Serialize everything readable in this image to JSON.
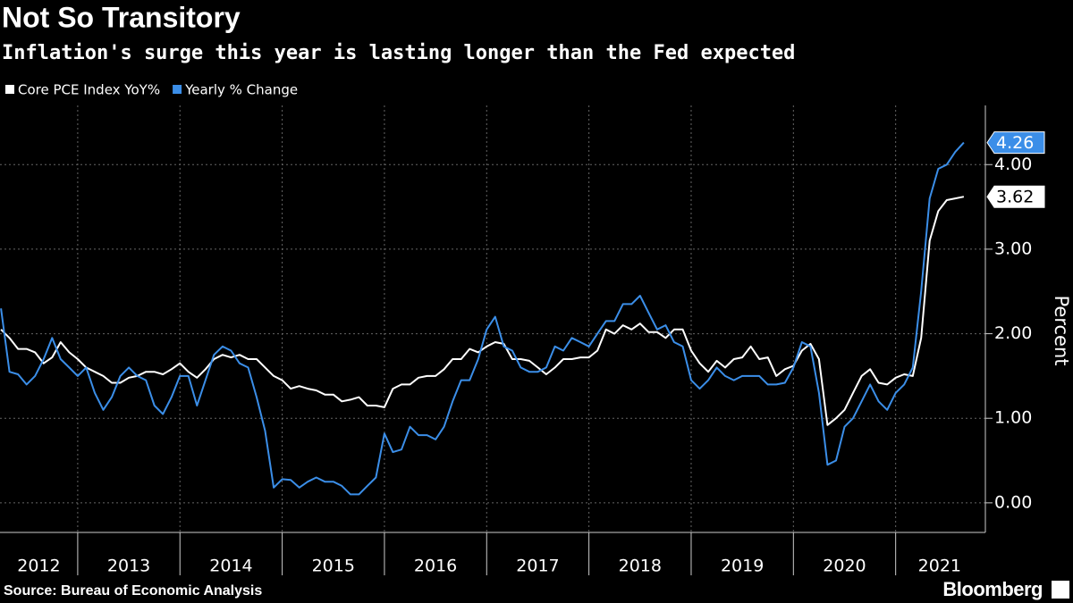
{
  "chart_data": {
    "type": "line",
    "title": "Not So Transitory",
    "subtitle": "Inflation's surge this year is lasting longer than the Fed expected",
    "y_label": "Percent",
    "source": "Source: Bureau of Economic Analysis",
    "brand": "Bloomberg",
    "grid": true,
    "xlim": [
      2012.24,
      2021.86
    ],
    "xticks": [
      {
        "value": 2012,
        "label": "2012"
      },
      {
        "value": 2013,
        "label": "2013"
      },
      {
        "value": 2014,
        "label": "2014"
      },
      {
        "value": 2015,
        "label": "2015"
      },
      {
        "value": 2016,
        "label": "2016"
      },
      {
        "value": 2017,
        "label": "2017"
      },
      {
        "value": 2018,
        "label": "2018"
      },
      {
        "value": 2019,
        "label": "2019"
      },
      {
        "value": 2020,
        "label": "2020"
      },
      {
        "value": 2021,
        "label": "2021"
      }
    ],
    "ylim": [
      -0.35,
      4.7
    ],
    "yticks": [
      {
        "value": 0,
        "label": "0.00"
      },
      {
        "value": 1,
        "label": "1.00"
      },
      {
        "value": 2,
        "label": "2.00"
      },
      {
        "value": 3,
        "label": "3.00"
      },
      {
        "value": 4,
        "label": "4.00"
      }
    ],
    "x": [
      2012.25,
      2012.333,
      2012.417,
      2012.5,
      2012.583,
      2012.667,
      2012.75,
      2012.833,
      2012.917,
      2013.0,
      2013.083,
      2013.167,
      2013.25,
      2013.333,
      2013.417,
      2013.5,
      2013.583,
      2013.667,
      2013.75,
      2013.833,
      2013.917,
      2014.0,
      2014.083,
      2014.167,
      2014.25,
      2014.333,
      2014.417,
      2014.5,
      2014.583,
      2014.667,
      2014.75,
      2014.833,
      2014.917,
      2015.0,
      2015.083,
      2015.167,
      2015.25,
      2015.333,
      2015.417,
      2015.5,
      2015.583,
      2015.667,
      2015.75,
      2015.833,
      2015.917,
      2016.0,
      2016.083,
      2016.167,
      2016.25,
      2016.333,
      2016.417,
      2016.5,
      2016.583,
      2016.667,
      2016.75,
      2016.833,
      2016.917,
      2017.0,
      2017.083,
      2017.167,
      2017.25,
      2017.333,
      2017.417,
      2017.5,
      2017.583,
      2017.667,
      2017.75,
      2017.833,
      2017.917,
      2018.0,
      2018.083,
      2018.167,
      2018.25,
      2018.333,
      2018.417,
      2018.5,
      2018.583,
      2018.667,
      2018.75,
      2018.833,
      2018.917,
      2019.0,
      2019.083,
      2019.167,
      2019.25,
      2019.333,
      2019.417,
      2019.5,
      2019.583,
      2019.667,
      2019.75,
      2019.833,
      2019.917,
      2020.0,
      2020.083,
      2020.167,
      2020.25,
      2020.333,
      2020.417,
      2020.5,
      2020.583,
      2020.667,
      2020.75,
      2020.833,
      2020.917,
      2021.0,
      2021.083,
      2021.167,
      2021.25,
      2021.333,
      2021.417,
      2021.5,
      2021.583,
      2021.667
    ],
    "series": [
      {
        "name": "Core PCE Index YoY%",
        "color": "#ffffff",
        "values": [
          2.05,
          1.95,
          1.82,
          1.82,
          1.78,
          1.65,
          1.72,
          1.9,
          1.78,
          1.7,
          1.6,
          1.55,
          1.5,
          1.42,
          1.42,
          1.48,
          1.5,
          1.55,
          1.55,
          1.52,
          1.58,
          1.65,
          1.55,
          1.48,
          1.58,
          1.7,
          1.75,
          1.72,
          1.75,
          1.7,
          1.7,
          1.6,
          1.5,
          1.45,
          1.35,
          1.38,
          1.35,
          1.33,
          1.28,
          1.28,
          1.2,
          1.22,
          1.25,
          1.15,
          1.15,
          1.13,
          1.35,
          1.4,
          1.4,
          1.48,
          1.5,
          1.5,
          1.58,
          1.7,
          1.7,
          1.82,
          1.78,
          1.85,
          1.9,
          1.88,
          1.7,
          1.7,
          1.68,
          1.6,
          1.52,
          1.6,
          1.7,
          1.7,
          1.72,
          1.72,
          1.8,
          2.05,
          2.0,
          2.1,
          2.05,
          2.12,
          2.02,
          2.02,
          1.95,
          2.05,
          2.05,
          1.8,
          1.65,
          1.55,
          1.68,
          1.6,
          1.7,
          1.72,
          1.85,
          1.7,
          1.72,
          1.5,
          1.58,
          1.62,
          1.8,
          1.88,
          1.7,
          0.92,
          1.0,
          1.1,
          1.3,
          1.5,
          1.58,
          1.42,
          1.4,
          1.48,
          1.52,
          1.5,
          1.95,
          3.1,
          3.45,
          3.58,
          3.6,
          3.62
        ]
      },
      {
        "name": "Yearly % Change",
        "color": "#3b8ee8",
        "values": [
          2.3,
          1.55,
          1.52,
          1.4,
          1.5,
          1.7,
          1.95,
          1.7,
          1.6,
          1.5,
          1.6,
          1.3,
          1.1,
          1.25,
          1.5,
          1.6,
          1.5,
          1.45,
          1.15,
          1.05,
          1.25,
          1.5,
          1.5,
          1.15,
          1.45,
          1.75,
          1.85,
          1.8,
          1.65,
          1.6,
          1.25,
          0.85,
          0.18,
          0.28,
          0.27,
          0.18,
          0.25,
          0.3,
          0.25,
          0.25,
          0.2,
          0.1,
          0.1,
          0.2,
          0.3,
          0.82,
          0.6,
          0.63,
          0.9,
          0.8,
          0.8,
          0.75,
          0.9,
          1.2,
          1.45,
          1.45,
          1.7,
          2.05,
          2.2,
          1.85,
          1.8,
          1.6,
          1.55,
          1.55,
          1.6,
          1.85,
          1.8,
          1.95,
          1.9,
          1.85,
          2.0,
          2.15,
          2.15,
          2.35,
          2.35,
          2.45,
          2.25,
          2.05,
          2.1,
          1.9,
          1.85,
          1.45,
          1.35,
          1.45,
          1.6,
          1.5,
          1.45,
          1.5,
          1.5,
          1.5,
          1.4,
          1.4,
          1.42,
          1.6,
          1.9,
          1.85,
          1.3,
          0.45,
          0.5,
          0.9,
          1.0,
          1.2,
          1.4,
          1.2,
          1.1,
          1.3,
          1.4,
          1.6,
          2.5,
          3.6,
          3.95,
          4.0,
          4.15,
          4.26
        ]
      }
    ]
  }
}
